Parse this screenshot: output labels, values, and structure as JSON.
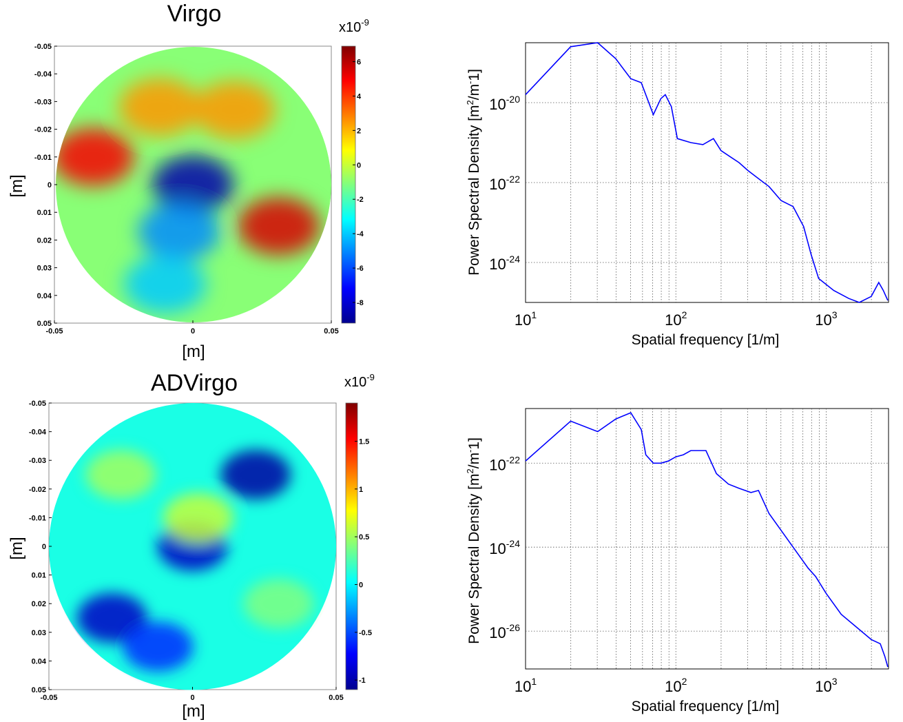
{
  "chart_data": [
    {
      "type": "heatmap",
      "title": "Virgo",
      "xlabel": "[m]",
      "ylabel": "[m]",
      "x_ticks": [
        "-0.05",
        "0",
        "0.05"
      ],
      "y_ticks": [
        "-0.05",
        "-0.04",
        "-0.03",
        "-0.02",
        "-0.01",
        "0",
        "0.01",
        "0.02",
        "0.03",
        "0.04",
        "0.05"
      ],
      "xlim": [
        -0.05,
        0.05
      ],
      "ylim": [
        -0.05,
        0.05
      ],
      "colorbar": {
        "multiplier_base": "x10",
        "multiplier_exp": "-9",
        "range": [
          -9.2,
          6.9
        ],
        "ticks": [
          "6",
          "4",
          "2",
          "0",
          "-2",
          "-4",
          "-6",
          "-8"
        ],
        "tick_values": [
          6,
          4,
          2,
          0,
          -2,
          -4,
          -6,
          -8
        ]
      },
      "colormap": "jet",
      "features": [
        {
          "x": -0.036,
          "y": -0.01,
          "value": 5.0
        },
        {
          "x": 0.031,
          "y": 0.015,
          "value": 5.5
        },
        {
          "x": -0.012,
          "y": -0.028,
          "value": 2.5
        },
        {
          "x": 0.015,
          "y": -0.027,
          "value": 2.5
        },
        {
          "x": 0.0,
          "y": 0.0,
          "value": -8.5
        },
        {
          "x": -0.005,
          "y": 0.017,
          "value": -5.0
        },
        {
          "x": -0.01,
          "y": 0.036,
          "value": -4.0
        }
      ],
      "baseline_value": -1.0
    },
    {
      "type": "line",
      "title": "",
      "xlabel": "Spatial frequency [1/m]",
      "ylabel": "Power Spectral Density [m²/m⁻1]",
      "ylabel_parts": [
        "Power Spectral Density [m",
        "2",
        "/m",
        "-",
        "1]"
      ],
      "x_scale": "log",
      "y_scale": "log",
      "xlim": [
        10,
        2600
      ],
      "ylim_exp": [
        -25.0,
        -18.5
      ],
      "x_tick_exps": [
        "1",
        "2",
        "3"
      ],
      "y_tick_exps": [
        "-20",
        "-22",
        "-24"
      ],
      "y_tick_values": [
        -20,
        -22,
        -24
      ],
      "grid": true,
      "color": "#0000ff",
      "series_log": [
        [
          1.0,
          -19.8
        ],
        [
          1.3,
          -18.6
        ],
        [
          1.48,
          -18.5
        ],
        [
          1.6,
          -18.9
        ],
        [
          1.7,
          -19.4
        ],
        [
          1.77,
          -19.5
        ],
        [
          1.85,
          -20.3
        ],
        [
          1.9,
          -19.9
        ],
        [
          1.93,
          -19.8
        ],
        [
          1.97,
          -20.1
        ],
        [
          2.01,
          -20.9
        ],
        [
          2.1,
          -21.0
        ],
        [
          2.18,
          -21.05
        ],
        [
          2.25,
          -20.9
        ],
        [
          2.3,
          -21.2
        ],
        [
          2.36,
          -21.35
        ],
        [
          2.42,
          -21.5
        ],
        [
          2.48,
          -21.7
        ],
        [
          2.55,
          -21.9
        ],
        [
          2.62,
          -22.1
        ],
        [
          2.7,
          -22.45
        ],
        [
          2.78,
          -22.6
        ],
        [
          2.85,
          -23.1
        ],
        [
          2.9,
          -23.8
        ],
        [
          2.95,
          -24.4
        ],
        [
          3.05,
          -24.7
        ],
        [
          3.15,
          -24.9
        ],
        [
          3.22,
          -25.0
        ],
        [
          3.3,
          -24.85
        ],
        [
          3.35,
          -24.5
        ],
        [
          3.38,
          -24.7
        ],
        [
          3.41,
          -24.95
        ]
      ]
    },
    {
      "type": "heatmap",
      "title": "ADVirgo",
      "xlabel": "[m]",
      "ylabel": "[m]",
      "x_ticks": [
        "-0.05",
        "0",
        "0.05"
      ],
      "y_ticks": [
        "-0.05",
        "-0.04",
        "-0.03",
        "-0.02",
        "-0.01",
        "0",
        "0.01",
        "0.02",
        "0.03",
        "0.04",
        "0.05"
      ],
      "xlim": [
        -0.05,
        0.05
      ],
      "ylim": [
        -0.05,
        0.05
      ],
      "colorbar": {
        "multiplier_base": "x10",
        "multiplier_exp": "-9",
        "range": [
          -1.1,
          1.9
        ],
        "ticks": [
          "1.5",
          "1",
          "0.5",
          "0",
          "-0.5",
          "-1"
        ],
        "tick_values": [
          1.5,
          1,
          0.5,
          0,
          -0.5,
          -1
        ]
      },
      "colormap": "jet",
      "features": [
        {
          "x": 0.022,
          "y": -0.025,
          "value": -1.0
        },
        {
          "x": -0.028,
          "y": 0.025,
          "value": -0.9
        },
        {
          "x": -0.012,
          "y": 0.035,
          "value": -0.6
        },
        {
          "x": 0.0,
          "y": 0.0,
          "value": -0.9
        },
        {
          "x": 0.002,
          "y": -0.01,
          "value": 0.6
        },
        {
          "x": -0.025,
          "y": -0.025,
          "value": 0.5
        },
        {
          "x": 0.03,
          "y": 0.02,
          "value": 0.4
        }
      ],
      "baseline_value": 0.1
    },
    {
      "type": "line",
      "title": "",
      "xlabel": "Spatial frequency [1/m]",
      "ylabel": "Power Spectral Density [m²/m⁻1]",
      "ylabel_parts": [
        "Power Spectral Density [m",
        "2",
        "/m",
        "-",
        "1]"
      ],
      "x_scale": "log",
      "y_scale": "log",
      "xlim": [
        10,
        2600
      ],
      "ylim_exp": [
        -26.9,
        -20.7
      ],
      "x_tick_exps": [
        "1",
        "2",
        "3"
      ],
      "y_tick_exps": [
        "-22",
        "-24",
        "-26"
      ],
      "y_tick_values": [
        -22,
        -24,
        -26
      ],
      "grid": true,
      "color": "#0000ff",
      "series_log": [
        [
          1.0,
          -21.95
        ],
        [
          1.3,
          -21.0
        ],
        [
          1.48,
          -21.25
        ],
        [
          1.6,
          -20.95
        ],
        [
          1.7,
          -20.8
        ],
        [
          1.77,
          -21.2
        ],
        [
          1.8,
          -21.8
        ],
        [
          1.85,
          -22.0
        ],
        [
          1.9,
          -22.0
        ],
        [
          1.95,
          -21.95
        ],
        [
          2.0,
          -21.85
        ],
        [
          2.05,
          -21.8
        ],
        [
          2.1,
          -21.7
        ],
        [
          2.2,
          -21.7
        ],
        [
          2.27,
          -22.25
        ],
        [
          2.35,
          -22.5
        ],
        [
          2.42,
          -22.6
        ],
        [
          2.5,
          -22.7
        ],
        [
          2.55,
          -22.65
        ],
        [
          2.62,
          -23.2
        ],
        [
          2.7,
          -23.6
        ],
        [
          2.8,
          -24.1
        ],
        [
          2.88,
          -24.5
        ],
        [
          2.93,
          -24.7
        ],
        [
          3.0,
          -25.1
        ],
        [
          3.1,
          -25.6
        ],
        [
          3.2,
          -25.9
        ],
        [
          3.3,
          -26.2
        ],
        [
          3.36,
          -26.3
        ],
        [
          3.39,
          -26.6
        ],
        [
          3.41,
          -26.85
        ]
      ]
    }
  ]
}
